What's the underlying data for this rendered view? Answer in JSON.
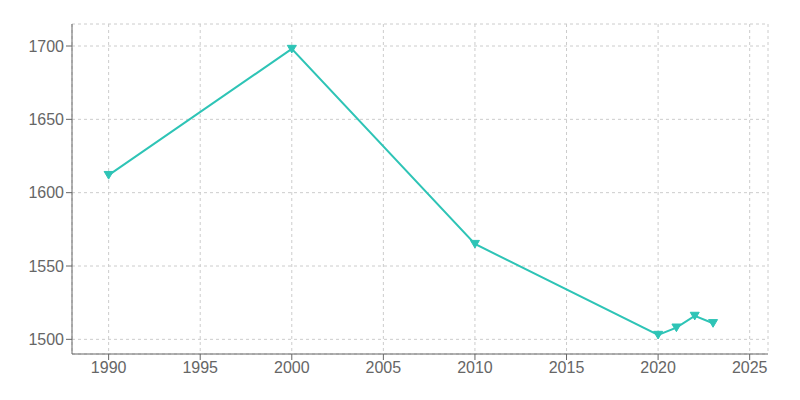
{
  "chart_data": {
    "type": "line",
    "x": [
      1990,
      2000,
      2010,
      2020,
      2021,
      2022,
      2023
    ],
    "values": [
      1612,
      1698,
      1565,
      1503,
      1508,
      1516,
      1511
    ],
    "color": "#2EC4B6",
    "marker": "triangle_down",
    "xlim": [
      1988,
      2026
    ],
    "ylim": [
      1490,
      1715
    ],
    "xticks": [
      1990,
      1995,
      2000,
      2005,
      2010,
      2015,
      2020,
      2025
    ],
    "yticks": [
      1500,
      1550,
      1600,
      1650,
      1700
    ],
    "grid": true
  }
}
